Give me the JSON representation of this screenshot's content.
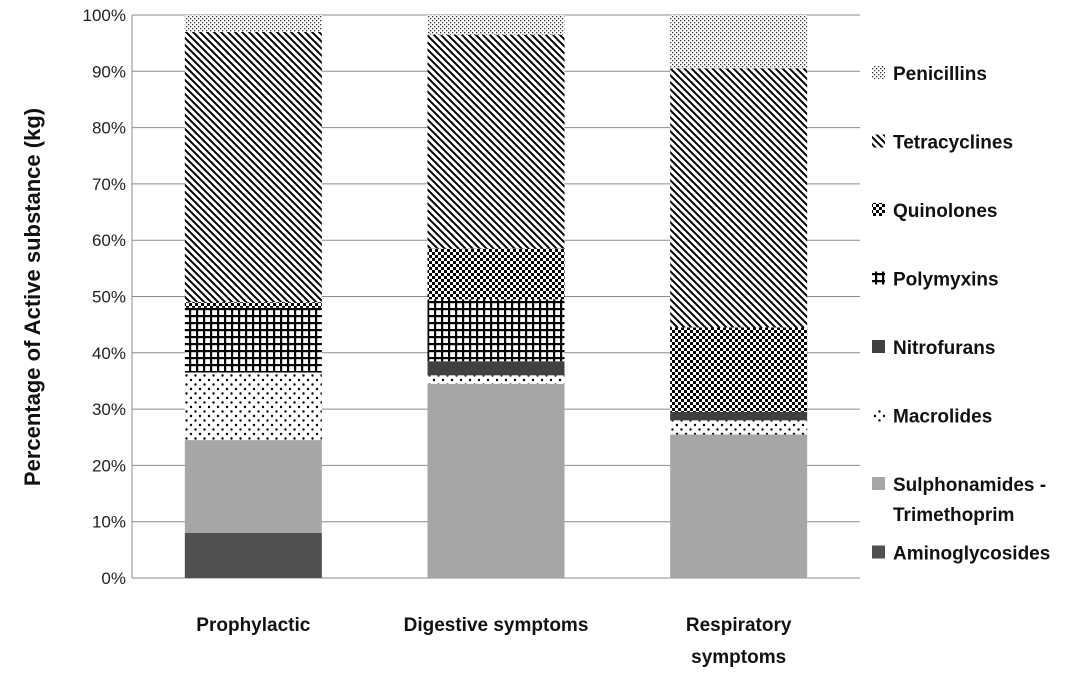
{
  "chart_data": {
    "type": "bar",
    "stacked": true,
    "ylabel": "Percentage of Active substance (kg)",
    "xlabel": "",
    "ylim": [
      0,
      100
    ],
    "yticks": [
      "0%",
      "10%",
      "20%",
      "30%",
      "40%",
      "50%",
      "60%",
      "70%",
      "80%",
      "90%",
      "100%"
    ],
    "grid": true,
    "legend_position": "right",
    "categories": [
      [
        "Prophylactic"
      ],
      [
        "Digestive symptoms"
      ],
      [
        "Respiratory",
        "symptoms"
      ]
    ],
    "series": [
      {
        "name": "Aminoglycosides",
        "label_lines": [
          "Aminoglycosides"
        ],
        "pattern": "solid-dark",
        "color": "#505050",
        "values": [
          8,
          0,
          0
        ]
      },
      {
        "name": "Sulphonamides - Trimethoprim",
        "label_lines": [
          "Sulphonamides -",
          "Trimethoprim"
        ],
        "pattern": "solid-light",
        "color": "#a6a6a6",
        "values": [
          16.5,
          34.5,
          25.5
        ]
      },
      {
        "name": "Macrolides",
        "label_lines": [
          "Macrolides"
        ],
        "pattern": "dots",
        "color": "#000000",
        "values": [
          12,
          1.5,
          2.5
        ]
      },
      {
        "name": "Nitrofurans",
        "label_lines": [
          "Nitrofurans"
        ],
        "pattern": "solid-dark",
        "color": "#404040",
        "values": [
          0,
          2.5,
          1.5
        ]
      },
      {
        "name": "Polymyxins",
        "label_lines": [
          "Polymyxins"
        ],
        "pattern": "cross-grid",
        "color": "#000000",
        "values": [
          11.5,
          11,
          0
        ]
      },
      {
        "name": "Quinolones",
        "label_lines": [
          "Quinolones"
        ],
        "pattern": "checker",
        "color": "#000000",
        "values": [
          1,
          9,
          15
        ]
      },
      {
        "name": "Tetracyclines",
        "label_lines": [
          "Tetracyclines"
        ],
        "pattern": "diagonal",
        "color": "#000000",
        "values": [
          48,
          38,
          46
        ]
      },
      {
        "name": "Penicillins",
        "label_lines": [
          "Penicillins"
        ],
        "pattern": "fine-dots",
        "color": "#000000",
        "values": [
          3,
          3.5,
          9.5
        ]
      }
    ]
  }
}
